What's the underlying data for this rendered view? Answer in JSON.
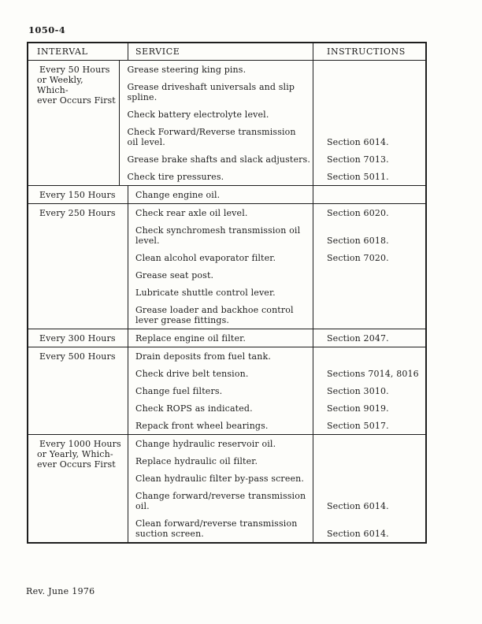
{
  "page": {
    "number": "1050-4",
    "footer": "Rev. June 1976"
  },
  "colors": {
    "ink": "#1d1d1d",
    "paper": "#fdfdfa",
    "table_border": "#1e1e1e"
  },
  "table": {
    "headers": {
      "interval": "INTERVAL",
      "service": "SERVICE",
      "instructions": "INSTRUCTIONS"
    },
    "blocks": [
      {
        "interval": "Every 50 Hours\nor Weekly, Which-\never Occurs First",
        "items": [
          {
            "service": "Grease steering king pins.",
            "instruction": ""
          },
          {
            "service": "Grease driveshaft universals and slip\nspline.",
            "instruction": ""
          },
          {
            "service": "Check battery electrolyte level.",
            "instruction": ""
          },
          {
            "service": "Check Forward/Reverse transmission\noil level.",
            "instruction": "Section 6014."
          },
          {
            "service": "Grease brake shafts and slack adjusters.",
            "instruction": "Section 7013."
          },
          {
            "service": "Check tire pressures.",
            "instruction": "Section 5011."
          }
        ]
      },
      {
        "interval": "Every 150 Hours",
        "items": [
          {
            "service": "Change engine oil.",
            "instruction": ""
          }
        ]
      },
      {
        "interval": "Every 250 Hours",
        "items": [
          {
            "service": "Check rear axle oil level.",
            "instruction": "Section 6020."
          },
          {
            "service": "Check synchromesh transmission oil\nlevel.",
            "instruction": "Section 6018."
          },
          {
            "service": "Clean alcohol evaporator filter.",
            "instruction": "Section 7020."
          },
          {
            "service": "Grease seat post.",
            "instruction": ""
          },
          {
            "service": "Lubricate shuttle control lever.",
            "instruction": ""
          },
          {
            "service": "Grease loader and backhoe control\nlever grease fittings.",
            "instruction": ""
          }
        ]
      },
      {
        "interval": "Every 300 Hours",
        "items": [
          {
            "service": "Replace engine oil filter.",
            "instruction": "Section 2047."
          }
        ]
      },
      {
        "interval": "Every 500 Hours",
        "items": [
          {
            "service": "Drain deposits from fuel tank.",
            "instruction": ""
          },
          {
            "service": "Check drive belt tension.",
            "instruction": "Sections 7014, 8016"
          },
          {
            "service": "Change fuel filters.",
            "instruction": "Section 3010."
          },
          {
            "service": "Check ROPS as indicated.",
            "instruction": "Section 9019."
          },
          {
            "service": "Repack front wheel bearings.",
            "instruction": "Section 5017."
          }
        ]
      },
      {
        "interval": "Every 1000 Hours\nor Yearly, Which-\never Occurs First",
        "items": [
          {
            "service": "Change hydraulic reservoir oil.",
            "instruction": ""
          },
          {
            "service": "Replace hydraulic oil filter.",
            "instruction": ""
          },
          {
            "service": "Clean hydraulic filter by-pass screen.",
            "instruction": ""
          },
          {
            "service": "Change forward/reverse transmission\noil.",
            "instruction": "Section 6014."
          },
          {
            "service": "Clean forward/reverse transmission\nsuction screen.",
            "instruction": "Section 6014."
          }
        ]
      }
    ]
  }
}
